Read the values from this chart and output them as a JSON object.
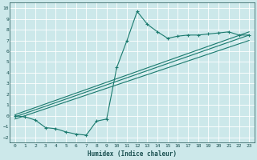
{
  "bg_color": "#cce8ea",
  "grid_color": "#ffffff",
  "line_color": "#1a7a6e",
  "xlabel": "Humidex (Indice chaleur)",
  "xlim": [
    -0.5,
    23.5
  ],
  "ylim": [
    -2.5,
    10.5
  ],
  "xticks": [
    0,
    1,
    2,
    3,
    4,
    5,
    6,
    7,
    8,
    9,
    10,
    11,
    12,
    13,
    14,
    15,
    16,
    17,
    18,
    19,
    20,
    21,
    22,
    23
  ],
  "yticks": [
    -2,
    -1,
    0,
    1,
    2,
    3,
    4,
    5,
    6,
    7,
    8,
    9,
    10
  ],
  "line1_x": [
    0,
    1,
    2,
    3,
    4,
    5,
    6,
    7,
    8,
    9,
    10,
    11,
    12,
    13,
    14,
    15,
    16,
    17,
    18,
    19,
    20,
    21,
    22,
    23
  ],
  "line1_y": [
    0.0,
    -0.1,
    -0.4,
    -1.1,
    -1.2,
    -1.5,
    -1.7,
    -1.8,
    -0.5,
    -0.3,
    4.5,
    7.0,
    9.7,
    8.5,
    7.8,
    7.2,
    7.4,
    7.5,
    7.5,
    7.6,
    7.7,
    7.8,
    7.5,
    7.5
  ],
  "line2_x": [
    0,
    23
  ],
  "line2_y": [
    -0.1,
    7.5
  ],
  "line3_x": [
    0,
    23
  ],
  "line3_y": [
    0.1,
    7.8
  ],
  "line4_x": [
    0,
    23
  ],
  "line4_y": [
    -0.3,
    7.0
  ]
}
